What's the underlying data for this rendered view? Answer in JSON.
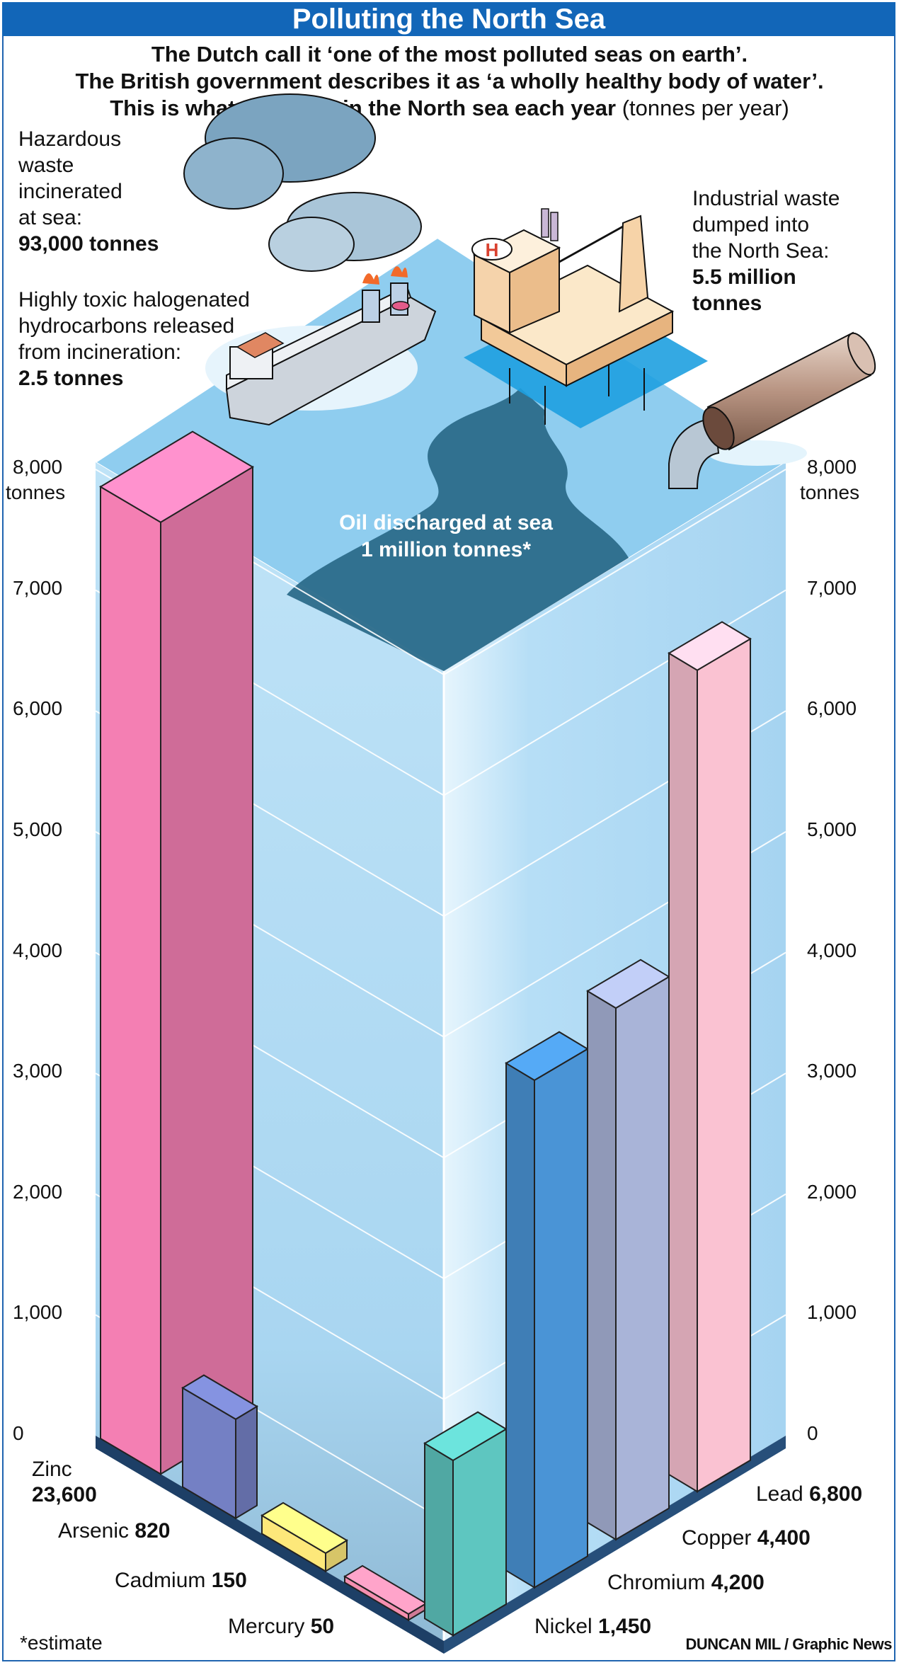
{
  "header": {
    "title": "Polluting the North Sea",
    "line1": "The Dutch call it ‘one of the most polluted seas on earth’.",
    "line2": "The British government describes it as ‘a wholly healthy body of water’.",
    "line3_bold": "This is what we dump in the North sea each year",
    "line3_normal": "(tonnes per year)"
  },
  "notes": {
    "hazardous_l1": "Hazardous",
    "hazardous_l2": "waste",
    "hazardous_l3": "incinerated",
    "hazardous_l4": "at sea:",
    "hazardous_value": "93,000 tonnes",
    "toxic_l1": "Highly toxic halogenated",
    "toxic_l2": "hydrocarbons released",
    "toxic_l3": "from incineration:",
    "toxic_value": "2.5 tonnes",
    "industrial_l1": "Industrial waste",
    "industrial_l2": "dumped into",
    "industrial_l3": "the North Sea:",
    "industrial_value1": "5.5 million",
    "industrial_value2": "tonnes",
    "oil_l1": "Oil discharged at sea",
    "oil_l2": "1 million tonnes*"
  },
  "chart_data": {
    "type": "bar",
    "unit": "tonnes",
    "ylim": [
      0,
      8000
    ],
    "yticks": [
      "0",
      "1,000",
      "2,000",
      "3,000",
      "4,000",
      "5,000",
      "6,000",
      "7,000",
      "8,000"
    ],
    "top_tick_unit": "tonnes",
    "left_series": [
      {
        "name": "Zinc",
        "value_label": "23,600",
        "value": 23600,
        "color": "#f47fb3"
      },
      {
        "name": "Arsenic",
        "value_label": "820",
        "value": 820,
        "color": "#7480c4"
      },
      {
        "name": "Cadmium",
        "value_label": "150",
        "value": 150,
        "color": "#fde87a"
      },
      {
        "name": "Mercury",
        "value_label": "50",
        "value": 50,
        "color": "#f58fb0"
      }
    ],
    "right_series": [
      {
        "name": "Nickel",
        "value_label": "1,450",
        "value": 1450,
        "color": "#5ec6c0"
      },
      {
        "name": "Chromium",
        "value_label": "4,200",
        "value": 4200,
        "color": "#4a94d6"
      },
      {
        "name": "Copper",
        "value_label": "4,400",
        "value": 4400,
        "color": "#a9b4d8"
      },
      {
        "name": "Lead",
        "value_label": "6,800",
        "value": 6800,
        "color": "#fac2d2"
      }
    ]
  },
  "footer": {
    "footnote": "*estimate",
    "credit": "DUNCAN MIL / Graphic News"
  },
  "colors": {
    "title_bg": "#1266b8",
    "water_front": "#b5dcf4",
    "water_top": "#8ccbef",
    "oil": "#2c6b8a"
  }
}
